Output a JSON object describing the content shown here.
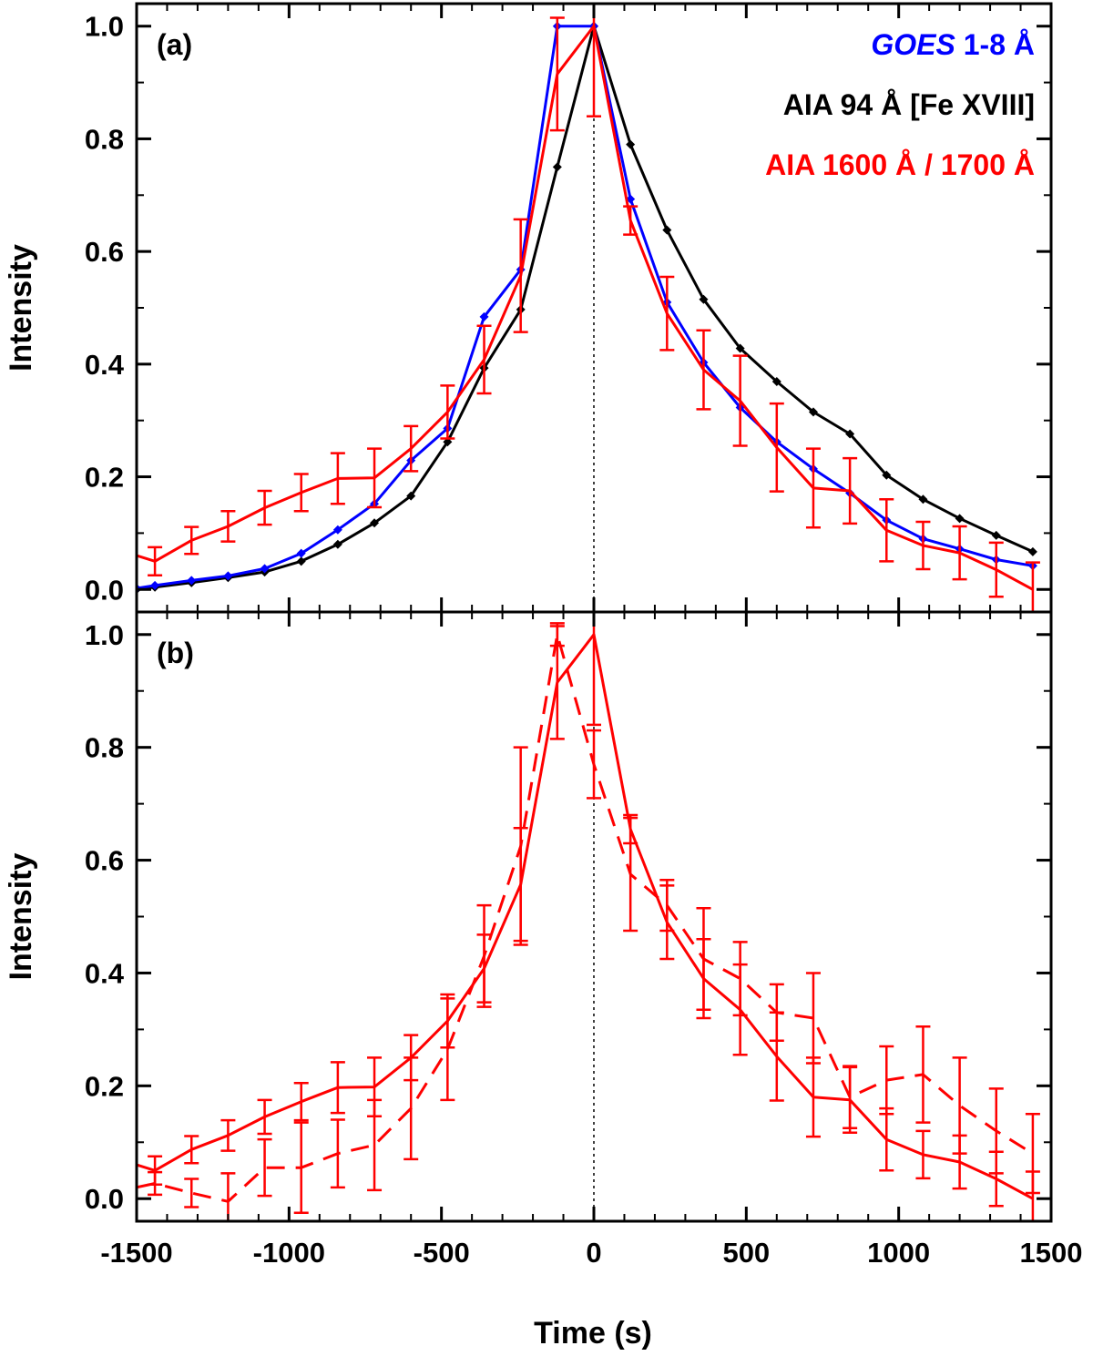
{
  "chart_data": [
    {
      "type": "line",
      "panel_label": "(a)",
      "ylabel": "Intensity",
      "xlabel": "",
      "xlim": [
        -1500,
        1500
      ],
      "ylim": [
        -0.04,
        1.04
      ],
      "xticks": [
        "-1500",
        "-1000",
        "-500",
        "0",
        "500",
        "1000",
        "1500"
      ],
      "yticks": [
        "0.0",
        "0.2",
        "0.4",
        "0.6",
        "0.8",
        "1.0"
      ],
      "reference_line_x": 0,
      "legend": [
        {
          "italic": "GOES",
          "text": " 1-8 Å",
          "color": "#0000ff"
        },
        {
          "italic": "",
          "text": "AIA 94 Å [Fe XVIII]",
          "color": "#000000"
        },
        {
          "italic": "",
          "text": "AIA 1600 Å / 1700 Å",
          "color": "#ff0000"
        }
      ],
      "series": [
        {
          "color": "#000000",
          "style": "solid",
          "marker": "diamond",
          "points": [
            [
              -1500,
              0.0
            ],
            [
              -1440,
              0.004
            ],
            [
              -1320,
              0.012
            ],
            [
              -1200,
              0.021
            ],
            [
              -1080,
              0.031
            ],
            [
              -960,
              0.05
            ],
            [
              -840,
              0.08
            ],
            [
              -720,
              0.118
            ],
            [
              -600,
              0.166
            ],
            [
              -480,
              0.262
            ],
            [
              -360,
              0.393
            ],
            [
              -240,
              0.497
            ],
            [
              -120,
              0.75
            ],
            [
              0,
              1.0
            ],
            [
              120,
              0.79
            ],
            [
              240,
              0.638
            ],
            [
              360,
              0.515
            ],
            [
              480,
              0.428
            ],
            [
              600,
              0.369
            ],
            [
              720,
              0.315
            ],
            [
              840,
              0.276
            ],
            [
              960,
              0.203
            ],
            [
              1080,
              0.16
            ],
            [
              1200,
              0.126
            ],
            [
              1320,
              0.096
            ],
            [
              1440,
              0.067
            ]
          ]
        },
        {
          "color": "#0000ff",
          "style": "solid",
          "marker": "diamond",
          "points": [
            [
              -1500,
              0.002
            ],
            [
              -1440,
              0.007
            ],
            [
              -1320,
              0.016
            ],
            [
              -1200,
              0.024
            ],
            [
              -1080,
              0.037
            ],
            [
              -960,
              0.064
            ],
            [
              -840,
              0.106
            ],
            [
              -720,
              0.152
            ],
            [
              -600,
              0.229
            ],
            [
              -480,
              0.286
            ],
            [
              -360,
              0.484
            ],
            [
              -240,
              0.568
            ],
            [
              -120,
              1.0
            ],
            [
              0,
              1.0
            ],
            [
              120,
              0.693
            ],
            [
              240,
              0.51
            ],
            [
              360,
              0.403
            ],
            [
              480,
              0.323
            ],
            [
              600,
              0.262
            ],
            [
              720,
              0.214
            ],
            [
              840,
              0.171
            ],
            [
              960,
              0.123
            ],
            [
              1080,
              0.09
            ],
            [
              1200,
              0.072
            ],
            [
              1320,
              0.053
            ],
            [
              1440,
              0.042
            ]
          ]
        },
        {
          "color": "#ff0000",
          "style": "solid",
          "marker": "none",
          "points": [
            [
              -1500,
              0.06
            ],
            [
              -1440,
              0.05
            ],
            [
              -1320,
              0.087
            ],
            [
              -1200,
              0.112
            ],
            [
              -1080,
              0.145
            ],
            [
              -960,
              0.172
            ],
            [
              -840,
              0.197
            ],
            [
              -720,
              0.198
            ],
            [
              -600,
              0.25
            ],
            [
              -480,
              0.315
            ],
            [
              -360,
              0.408
            ],
            [
              -240,
              0.557
            ],
            [
              -120,
              0.915
            ],
            [
              0,
              1.0
            ],
            [
              120,
              0.655
            ],
            [
              240,
              0.49
            ],
            [
              360,
              0.39
            ],
            [
              480,
              0.335
            ],
            [
              600,
              0.252
            ],
            [
              720,
              0.18
            ],
            [
              840,
              0.175
            ],
            [
              960,
              0.105
            ],
            [
              1080,
              0.078
            ],
            [
              1200,
              0.065
            ],
            [
              1320,
              0.035
            ],
            [
              1440,
              0.0
            ]
          ],
          "errors": [
            [
              -1440,
              0.025
            ],
            [
              -1320,
              0.024
            ],
            [
              -1200,
              0.027
            ],
            [
              -1080,
              0.03
            ],
            [
              -960,
              0.033
            ],
            [
              -840,
              0.045
            ],
            [
              -720,
              0.052
            ],
            [
              -600,
              0.04
            ],
            [
              -480,
              0.047
            ],
            [
              -360,
              0.06
            ],
            [
              -240,
              0.1
            ],
            [
              -120,
              0.1
            ],
            [
              0,
              0.16
            ],
            [
              120,
              0.025
            ],
            [
              240,
              0.065
            ],
            [
              360,
              0.07
            ],
            [
              480,
              0.08
            ],
            [
              600,
              0.078
            ],
            [
              720,
              0.07
            ],
            [
              840,
              0.058
            ],
            [
              960,
              0.055
            ],
            [
              1080,
              0.042
            ],
            [
              1200,
              0.047
            ],
            [
              1320,
              0.048
            ],
            [
              1440,
              0.048
            ]
          ]
        }
      ]
    },
    {
      "type": "line",
      "panel_label": "(b)",
      "ylabel": "Intensity",
      "xlabel": "Time (s)",
      "xlim": [
        -1500,
        1500
      ],
      "ylim": [
        -0.04,
        1.04
      ],
      "xticks": [
        "-1500",
        "-1000",
        "-500",
        "0",
        "500",
        "1000",
        "1500"
      ],
      "yticks": [
        "0.0",
        "0.2",
        "0.4",
        "0.6",
        "0.8",
        "1.0"
      ],
      "reference_line_x": 0,
      "series": [
        {
          "color": "#ff0000",
          "style": "solid",
          "marker": "none",
          "points": [
            [
              -1500,
              0.06
            ],
            [
              -1440,
              0.05
            ],
            [
              -1320,
              0.087
            ],
            [
              -1200,
              0.112
            ],
            [
              -1080,
              0.145
            ],
            [
              -960,
              0.172
            ],
            [
              -840,
              0.197
            ],
            [
              -720,
              0.198
            ],
            [
              -600,
              0.25
            ],
            [
              -480,
              0.315
            ],
            [
              -360,
              0.408
            ],
            [
              -240,
              0.557
            ],
            [
              -120,
              0.915
            ],
            [
              0,
              1.0
            ],
            [
              120,
              0.655
            ],
            [
              240,
              0.49
            ],
            [
              360,
              0.39
            ],
            [
              480,
              0.335
            ],
            [
              600,
              0.252
            ],
            [
              720,
              0.18
            ],
            [
              840,
              0.175
            ],
            [
              960,
              0.105
            ],
            [
              1080,
              0.078
            ],
            [
              1200,
              0.065
            ],
            [
              1320,
              0.035
            ],
            [
              1440,
              0.0
            ]
          ],
          "errors": [
            [
              -1440,
              0.025
            ],
            [
              -1320,
              0.024
            ],
            [
              -1200,
              0.027
            ],
            [
              -1080,
              0.03
            ],
            [
              -960,
              0.033
            ],
            [
              -840,
              0.045
            ],
            [
              -720,
              0.052
            ],
            [
              -600,
              0.04
            ],
            [
              -480,
              0.047
            ],
            [
              -360,
              0.06
            ],
            [
              -240,
              0.1
            ],
            [
              -120,
              0.1
            ],
            [
              0,
              0.16
            ],
            [
              120,
              0.025
            ],
            [
              240,
              0.065
            ],
            [
              360,
              0.07
            ],
            [
              480,
              0.08
            ],
            [
              600,
              0.078
            ],
            [
              720,
              0.07
            ],
            [
              840,
              0.058
            ],
            [
              960,
              0.055
            ],
            [
              1080,
              0.042
            ],
            [
              1200,
              0.047
            ],
            [
              1320,
              0.048
            ],
            [
              1440,
              0.048
            ]
          ]
        },
        {
          "color": "#ff0000",
          "style": "dashed",
          "marker": "none",
          "points": [
            [
              -1500,
              0.02
            ],
            [
              -1440,
              0.027
            ],
            [
              -1320,
              0.01
            ],
            [
              -1200,
              -0.005
            ],
            [
              -1080,
              0.055
            ],
            [
              -960,
              0.055
            ],
            [
              -840,
              0.08
            ],
            [
              -720,
              0.095
            ],
            [
              -600,
              0.16
            ],
            [
              -480,
              0.265
            ],
            [
              -360,
              0.43
            ],
            [
              -240,
              0.625
            ],
            [
              -120,
              1.0
            ],
            [
              0,
              0.77
            ],
            [
              120,
              0.575
            ],
            [
              240,
              0.52
            ],
            [
              360,
              0.425
            ],
            [
              480,
              0.39
            ],
            [
              600,
              0.33
            ],
            [
              720,
              0.32
            ],
            [
              840,
              0.18
            ],
            [
              960,
              0.21
            ],
            [
              1080,
              0.22
            ],
            [
              1200,
              0.165
            ],
            [
              1320,
              0.12
            ],
            [
              1440,
              0.08
            ]
          ],
          "errors": [
            [
              -1440,
              0.02
            ],
            [
              -1320,
              0.025
            ],
            [
              -1200,
              0.05
            ],
            [
              -1080,
              0.05
            ],
            [
              -960,
              0.08
            ],
            [
              -840,
              0.06
            ],
            [
              -720,
              0.08
            ],
            [
              -600,
              0.09
            ],
            [
              -480,
              0.09
            ],
            [
              -360,
              0.09
            ],
            [
              -240,
              0.175
            ],
            [
              -120,
              0.02
            ],
            [
              0,
              0.06
            ],
            [
              120,
              0.1
            ],
            [
              240,
              0.045
            ],
            [
              360,
              0.09
            ],
            [
              480,
              0.065
            ],
            [
              600,
              0.05
            ],
            [
              720,
              0.08
            ],
            [
              840,
              0.055
            ],
            [
              960,
              0.06
            ],
            [
              1080,
              0.085
            ],
            [
              1200,
              0.085
            ],
            [
              1320,
              0.075
            ],
            [
              1440,
              0.07
            ]
          ]
        }
      ]
    }
  ]
}
